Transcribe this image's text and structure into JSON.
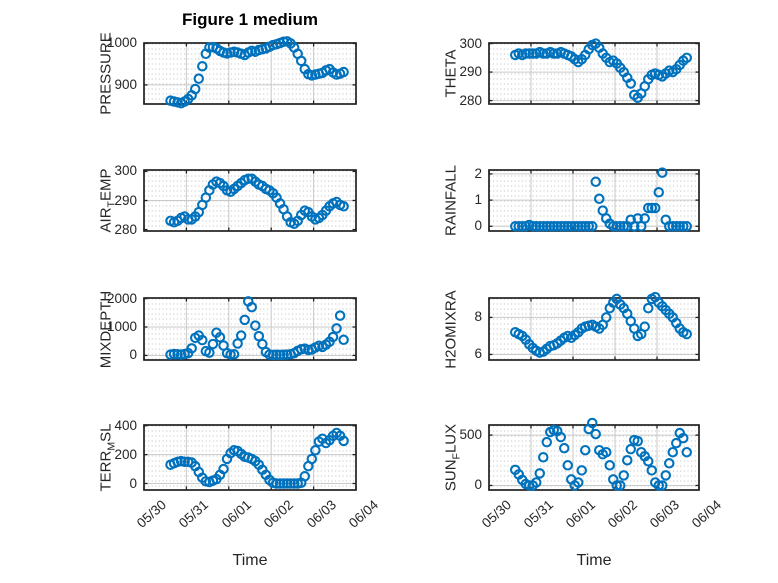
{
  "title": "Figure 1 medium",
  "xlabel": "Time",
  "accent_color": "#0072BD",
  "axis_color": "#222222",
  "grid_color": "#cacaca",
  "minor_dot_color": "#c3c3c3",
  "x_tick_labels": [
    "05/30",
    "05/31",
    "06/01",
    "06/02",
    "06/03",
    "06/04"
  ],
  "chart_data": [
    {
      "type": "scatter",
      "name": "PRESSURE",
      "ylabel_parts": [
        {
          "text": "PRESSURE"
        }
      ],
      "position": {
        "row": 0,
        "col": 0
      },
      "marker": "o",
      "grid": true,
      "minor_grid": true,
      "xlim": [
        0,
        5
      ],
      "x_start": 0.625,
      "x_step": 0.083333,
      "ylim": [
        854,
        1001
      ],
      "yticks": [
        900,
        1000
      ],
      "values": [
        862,
        860,
        858,
        856,
        860,
        866,
        875,
        890,
        915,
        945,
        975,
        990,
        991,
        988,
        982,
        978,
        976,
        978,
        980,
        978,
        975,
        972,
        978,
        982,
        980,
        984,
        986,
        988,
        992,
        996,
        998,
        1001,
        1004,
        1005,
        1000,
        990,
        975,
        958,
        938,
        926,
        923,
        925,
        927,
        929,
        935,
        938,
        930,
        925,
        927,
        931
      ]
    },
    {
      "type": "scatter",
      "name": "THETA",
      "ylabel_parts": [
        {
          "text": "THETA"
        }
      ],
      "position": {
        "row": 0,
        "col": 1
      },
      "marker": "o",
      "grid": true,
      "minor_grid": true,
      "xlim": [
        0,
        5
      ],
      "x_start": 0.625,
      "x_step": 0.083333,
      "ylim": [
        278.8,
        300.2
      ],
      "yticks": [
        280,
        290,
        300
      ],
      "values": [
        296,
        296.5,
        296,
        296.5,
        296.5,
        296.5,
        296.5,
        297,
        296.5,
        296.5,
        297,
        296.5,
        296.5,
        297,
        296.5,
        296,
        295.5,
        294.5,
        293.5,
        294.5,
        296,
        298,
        299.5,
        300,
        298.5,
        296.5,
        295,
        293.5,
        294,
        293,
        291.5,
        290,
        288,
        286,
        282,
        281,
        282.5,
        285,
        287.5,
        289,
        289.5,
        289,
        288.5,
        289.5,
        290.5,
        290,
        291,
        292.5,
        294,
        295
      ]
    },
    {
      "type": "scatter",
      "name": "AIR_TEMP",
      "ylabel_parts": [
        {
          "text": "AIR"
        },
        {
          "text": "T",
          "sub": true
        },
        {
          "text": "EMP"
        }
      ],
      "position": {
        "row": 1,
        "col": 0
      },
      "marker": "o",
      "grid": true,
      "minor_grid": true,
      "xlim": [
        0,
        5
      ],
      "x_start": 0.625,
      "x_step": 0.083333,
      "ylim": [
        279.5,
        300.5
      ],
      "yticks": [
        280,
        290,
        300
      ],
      "values": [
        283,
        282.5,
        283,
        284,
        284.5,
        283.5,
        283.5,
        284.5,
        286,
        288.5,
        291,
        293.5,
        295.5,
        296.5,
        296,
        295,
        293.5,
        293,
        294,
        295,
        296,
        297,
        297.5,
        297.5,
        296.5,
        295.5,
        295,
        294,
        293.5,
        292.5,
        291,
        289,
        287,
        284.5,
        282.5,
        282,
        283,
        285,
        286.5,
        286,
        284.5,
        283.5,
        284,
        285,
        286.5,
        288,
        289,
        289.5,
        288.5,
        288
      ]
    },
    {
      "type": "scatter",
      "name": "RAINFALL",
      "ylabel_parts": [
        {
          "text": "RAINFALL"
        }
      ],
      "position": {
        "row": 1,
        "col": 1
      },
      "marker": "o",
      "grid": true,
      "minor_grid": true,
      "xlim": [
        0,
        5
      ],
      "x_start": 0.625,
      "x_step": 0.083333,
      "ylim": [
        -0.18,
        2.15
      ],
      "yticks": [
        0,
        1,
        2
      ],
      "values": [
        0,
        0,
        0,
        0,
        0.05,
        0,
        0,
        0,
        0,
        0,
        0,
        0,
        0,
        0,
        0,
        0,
        0,
        0,
        0,
        0,
        0,
        0,
        0,
        1.7,
        1.05,
        0.6,
        0.3,
        0.1,
        0,
        0,
        0,
        0,
        0,
        0.25,
        0,
        0.3,
        0,
        0.3,
        0.7,
        0.7,
        0.7,
        1.3,
        2.05,
        0.25,
        0,
        0,
        0,
        0,
        0,
        0
      ]
    },
    {
      "type": "scatter",
      "name": "MIXDEPTH",
      "ylabel_parts": [
        {
          "text": "MIXDEPTH"
        }
      ],
      "position": {
        "row": 2,
        "col": 0
      },
      "marker": "o",
      "grid": true,
      "minor_grid": true,
      "xlim": [
        0,
        5
      ],
      "x_start": 0.625,
      "x_step": 0.083333,
      "ylim": [
        -160,
        2020
      ],
      "yticks": [
        0,
        1000,
        2000
      ],
      "values": [
        30,
        50,
        40,
        30,
        50,
        80,
        250,
        620,
        700,
        540,
        150,
        100,
        400,
        800,
        640,
        350,
        80,
        30,
        40,
        420,
        700,
        1250,
        1900,
        1700,
        1050,
        680,
        400,
        120,
        30,
        20,
        25,
        20,
        25,
        30,
        40,
        80,
        160,
        220,
        240,
        190,
        210,
        280,
        340,
        300,
        380,
        480,
        650,
        950,
        1400,
        550
      ]
    },
    {
      "type": "scatter",
      "name": "H2OMIXRA",
      "ylabel_parts": [
        {
          "text": "H2OMIXRA"
        }
      ],
      "position": {
        "row": 2,
        "col": 1
      },
      "marker": "o",
      "grid": true,
      "minor_grid": true,
      "xlim": [
        0,
        5
      ],
      "x_start": 0.625,
      "x_step": 0.083333,
      "ylim": [
        5.7,
        9.05
      ],
      "yticks": [
        6,
        8
      ],
      "values": [
        7.2,
        7.1,
        7,
        6.8,
        6.55,
        6.35,
        6.2,
        6.1,
        6.15,
        6.3,
        6.45,
        6.5,
        6.6,
        6.75,
        6.9,
        7,
        6.9,
        7.05,
        7.2,
        7.4,
        7.5,
        7.55,
        7.6,
        7.5,
        7.4,
        7.6,
        8,
        8.5,
        8.8,
        9,
        8.7,
        8.5,
        8.2,
        7.8,
        7.4,
        7,
        7.1,
        7.5,
        8.5,
        9,
        9.1,
        8.8,
        8.6,
        8.4,
        8.2,
        8,
        7.7,
        7.4,
        7.2,
        7.1
      ]
    },
    {
      "type": "scatter",
      "name": "TERR_MSL",
      "ylabel_parts": [
        {
          "text": "TERR"
        },
        {
          "text": "M",
          "sub": true
        },
        {
          "text": "SL"
        }
      ],
      "position": {
        "row": 3,
        "col": 0
      },
      "marker": "o",
      "grid": true,
      "minor_grid": true,
      "xlim": [
        0,
        5
      ],
      "x_start": 0.625,
      "x_step": 0.083333,
      "ylim": [
        -45,
        405
      ],
      "yticks": [
        0,
        200,
        400
      ],
      "values": [
        130,
        140,
        150,
        155,
        150,
        150,
        145,
        120,
        80,
        40,
        15,
        10,
        20,
        30,
        60,
        100,
        170,
        210,
        230,
        225,
        205,
        185,
        180,
        170,
        155,
        130,
        95,
        60,
        25,
        5,
        0,
        0,
        0,
        0,
        0,
        0,
        0,
        5,
        50,
        120,
        170,
        230,
        290,
        310,
        280,
        300,
        330,
        350,
        330,
        295
      ]
    },
    {
      "type": "scatter",
      "name": "SUN_FLUX",
      "ylabel_parts": [
        {
          "text": "SUN"
        },
        {
          "text": "F",
          "sub": true
        },
        {
          "text": "LUX"
        }
      ],
      "position": {
        "row": 3,
        "col": 1
      },
      "marker": "o",
      "grid": true,
      "minor_grid": true,
      "xlim": [
        0,
        5
      ],
      "x_start": 0.625,
      "x_step": 0.083333,
      "ylim": [
        -45,
        600
      ],
      "yticks": [
        0,
        500
      ],
      "values": [
        155,
        110,
        55,
        15,
        0,
        0,
        30,
        120,
        280,
        430,
        530,
        550,
        540,
        480,
        370,
        200,
        60,
        0,
        30,
        150,
        350,
        560,
        620,
        510,
        350,
        310,
        330,
        200,
        60,
        0,
        0,
        100,
        250,
        360,
        450,
        440,
        330,
        290,
        240,
        150,
        30,
        0,
        0,
        100,
        220,
        330,
        420,
        520,
        470,
        330
      ]
    }
  ]
}
